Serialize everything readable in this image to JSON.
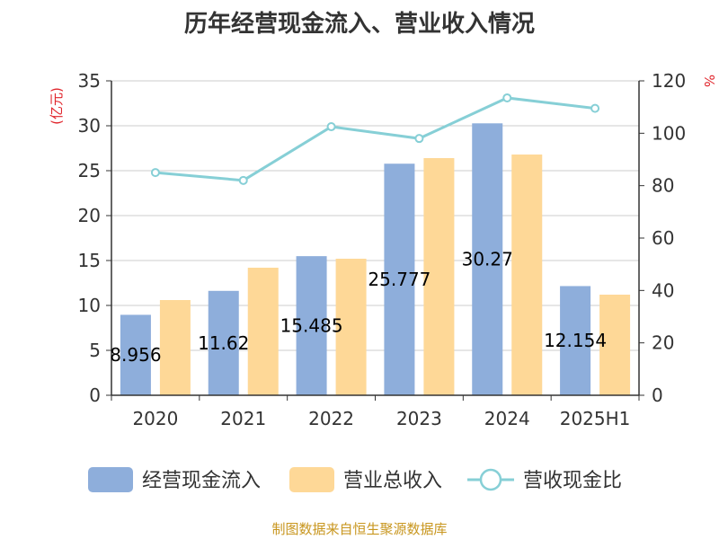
{
  "chart_data": {
    "type": "bar",
    "title": "历年经营现金流入、营业收入情况",
    "source": "制图数据来自恒生聚源数据库",
    "categories": [
      "2020",
      "2021",
      "2022",
      "2023",
      "2024",
      "2025H1"
    ],
    "left_axis": {
      "unit": "(亿元)",
      "ylim": [
        0,
        35
      ],
      "ticks": [
        "0",
        "5",
        "10",
        "15",
        "20",
        "25",
        "30",
        "35"
      ]
    },
    "right_axis": {
      "unit": "%",
      "ylim": [
        0,
        120
      ],
      "ticks": [
        "0",
        "20",
        "40",
        "60",
        "80",
        "100",
        "120"
      ]
    },
    "series": [
      {
        "name": "经营现金流入",
        "type": "bar",
        "axis": "left",
        "color": "#8eaedb",
        "values": [
          8.956,
          11.621,
          15.485,
          25.777,
          30.271,
          12.154
        ],
        "labels": [
          "8.956",
          "11.62",
          "15.485",
          "25.777",
          "30.27",
          "12.154"
        ]
      },
      {
        "name": "营业总收入",
        "type": "bar",
        "axis": "left",
        "color": "#fed897",
        "values": [
          10.6,
          14.2,
          15.2,
          26.4,
          26.8,
          11.2
        ]
      },
      {
        "name": "营收现金比",
        "type": "line",
        "axis": "right",
        "color": "#86cfd6",
        "values": [
          85,
          82,
          102.5,
          98,
          113.5,
          109.5
        ]
      }
    ],
    "grid": true,
    "legend": "bottom"
  }
}
